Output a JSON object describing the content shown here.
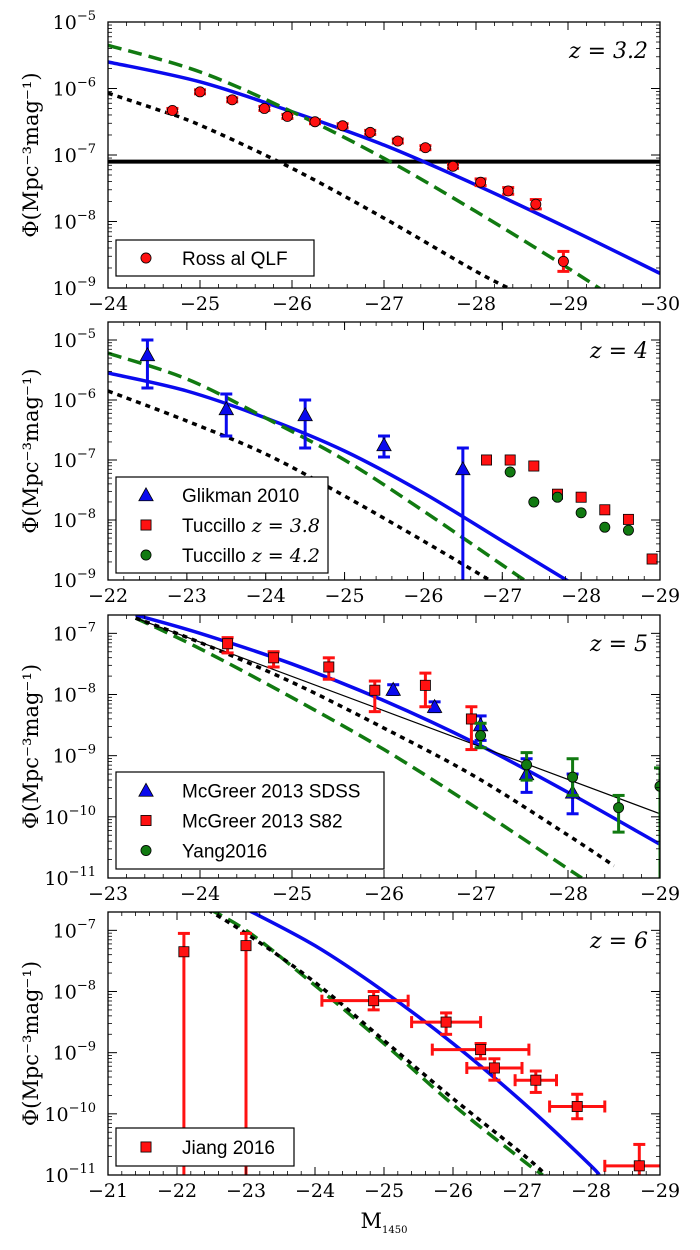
{
  "figure": {
    "xlabel": "M",
    "xlabel_sub": "1450"
  },
  "chart_data": [
    {
      "type": "scatter",
      "panel": "z = 3.2",
      "title": "z = 3.2",
      "ylabel": "Φ(Mpc⁻³mag⁻¹)",
      "xlim": [
        -24,
        -30
      ],
      "ylim_log10": [
        -9,
        -5
      ],
      "xticks": [
        -24,
        -25,
        -26,
        -27,
        -28,
        -29,
        -30
      ],
      "xtick_labels": [
        "−24",
        "−25",
        "−26",
        "−27",
        "−28",
        "−29",
        "−30"
      ],
      "ytick_exps": [
        -9,
        -8,
        -7,
        -6,
        -5
      ],
      "hline_log10": -7.1,
      "curves": [
        {
          "name": "blue",
          "color": "#0a0aee",
          "style": "solid",
          "x": [
            -24,
            -25,
            -26,
            -27,
            -28,
            -29,
            -30
          ],
          "log_y": [
            -5.6,
            -5.9,
            -6.35,
            -6.85,
            -7.45,
            -8.1,
            -8.78
          ]
        },
        {
          "name": "green",
          "color": "#117a11",
          "style": "dashed",
          "x": [
            -24,
            -25,
            -26,
            -27,
            -28,
            -29,
            -29.5
          ],
          "log_y": [
            -5.35,
            -5.75,
            -6.35,
            -7.05,
            -7.85,
            -8.7,
            -9.15
          ]
        },
        {
          "name": "black",
          "color": "#000000",
          "style": "dotted",
          "x": [
            -24,
            -24.5,
            -25,
            -26,
            -27,
            -28,
            -28.5
          ],
          "log_y": [
            -6.07,
            -6.3,
            -6.55,
            -7.2,
            -7.95,
            -8.75,
            -9.1
          ]
        }
      ],
      "series": [
        {
          "name": "Ross  al QLF",
          "marker": "circle",
          "color": "#ff1111",
          "x": [
            -24.7,
            -25.0,
            -25.35,
            -25.7,
            -25.95,
            -26.25,
            -26.55,
            -26.85,
            -27.15,
            -27.45,
            -27.75,
            -28.05,
            -28.35,
            -28.65,
            -28.95
          ],
          "log_y": [
            -6.33,
            -6.05,
            -6.17,
            -6.3,
            -6.42,
            -6.5,
            -6.56,
            -6.66,
            -6.79,
            -6.89,
            -7.17,
            -7.41,
            -7.54,
            -7.74,
            -8.6
          ],
          "err_lo": [
            0.03,
            0.03,
            0.03,
            0.03,
            0.03,
            0.03,
            0.03,
            0.03,
            0.03,
            0.03,
            0.03,
            0.05,
            0.05,
            0.07,
            0.15
          ],
          "err_hi": [
            0.03,
            0.03,
            0.03,
            0.03,
            0.03,
            0.03,
            0.03,
            0.03,
            0.03,
            0.03,
            0.03,
            0.05,
            0.05,
            0.07,
            0.15
          ]
        }
      ],
      "legend": [
        {
          "label": "Ross  al QLF",
          "marker": "circle",
          "color": "#ff1111"
        }
      ]
    },
    {
      "type": "scatter",
      "panel": "z = 4",
      "title": "z = 4",
      "ylabel": "Φ(Mpc⁻³mag⁻¹)",
      "xlim": [
        -22,
        -29
      ],
      "ylim_log10": [
        -9,
        -4.7
      ],
      "xticks": [
        -22,
        -23,
        -24,
        -25,
        -26,
        -27,
        -28,
        -29
      ],
      "xtick_labels": [
        "−22",
        "−23",
        "−24",
        "−25",
        "−26",
        "−27",
        "−28",
        "−29"
      ],
      "ytick_exps": [
        -9,
        -8,
        -7,
        -6,
        -5
      ],
      "curves": [
        {
          "name": "blue",
          "color": "#0a0aee",
          "style": "solid",
          "x": [
            -22,
            -23,
            -24,
            -25,
            -26,
            -27,
            -28,
            -28.25
          ],
          "log_y": [
            -5.55,
            -5.85,
            -6.3,
            -6.85,
            -7.55,
            -8.35,
            -9.15,
            -9.35
          ]
        },
        {
          "name": "green",
          "color": "#117a11",
          "style": "dashed",
          "x": [
            -22,
            -23,
            -24,
            -25,
            -26,
            -27,
            -27.5
          ],
          "log_y": [
            -5.22,
            -5.65,
            -6.3,
            -7.0,
            -7.85,
            -8.75,
            -9.2
          ]
        },
        {
          "name": "black",
          "color": "#000000",
          "style": "dotted",
          "x": [
            -22,
            -23,
            -24,
            -25,
            -26,
            -26.9
          ],
          "log_y": [
            -5.85,
            -6.35,
            -6.9,
            -7.6,
            -8.35,
            -9.05
          ]
        }
      ],
      "series": [
        {
          "name": "Glikman 2010",
          "marker": "triangle",
          "color": "#0a0aee",
          "x": [
            -22.5,
            -23.5,
            -24.5,
            -25.5,
            -26.5
          ],
          "log_y": [
            -5.25,
            -6.15,
            -6.25,
            -6.75,
            -7.15
          ],
          "err_lo": [
            0.55,
            0.45,
            0.55,
            0.2,
            2.0
          ],
          "err_hi": [
            0.25,
            0.25,
            0.25,
            0.15,
            0.35
          ]
        },
        {
          "name": "Tuccillo z = 3.8",
          "marker": "square",
          "color": "#ff1111",
          "x": [
            -26.8,
            -27.1,
            -27.4,
            -27.7,
            -28.0,
            -28.3,
            -28.6,
            -28.9
          ],
          "log_y": [
            -7.0,
            -7.0,
            -7.1,
            -7.57,
            -7.62,
            -7.83,
            -7.99,
            -8.65
          ],
          "err_lo": [
            0,
            0,
            0,
            0,
            0,
            0,
            0,
            0
          ],
          "err_hi": [
            0,
            0,
            0,
            0,
            0,
            0,
            0,
            0
          ]
        },
        {
          "name": "Tuccillo z = 4.2",
          "marker": "circle",
          "color": "#117a11",
          "x": [
            -27.1,
            -27.4,
            -27.7,
            -28.0,
            -28.3,
            -28.6
          ],
          "log_y": [
            -7.2,
            -7.7,
            -7.62,
            -7.88,
            -8.12,
            -8.17
          ],
          "err_lo": [
            0,
            0,
            0,
            0,
            0,
            0
          ],
          "err_hi": [
            0,
            0,
            0,
            0,
            0,
            0
          ]
        }
      ],
      "legend": [
        {
          "label": "Glikman 2010",
          "marker": "triangle",
          "color": "#0a0aee"
        },
        {
          "label": "Tuccillo",
          "z_suffix": "z = 3.8",
          "marker": "square",
          "color": "#ff1111"
        },
        {
          "label": "Tuccillo",
          "z_suffix": "z = 4.2",
          "marker": "circle",
          "color": "#117a11"
        }
      ]
    },
    {
      "type": "scatter",
      "panel": "z = 5",
      "title": "z = 5",
      "ylabel": "Φ(Mpc⁻³mag⁻¹)",
      "xlim": [
        -23,
        -29
      ],
      "ylim_log10": [
        -11,
        -6.7
      ],
      "xticks": [
        -23,
        -24,
        -25,
        -26,
        -27,
        -28,
        -29
      ],
      "xtick_labels": [
        "−23",
        "−24",
        "−25",
        "−26",
        "−27",
        "−28",
        "−29"
      ],
      "ytick_exps": [
        -11,
        -10,
        -9,
        -8,
        -7
      ],
      "curves": [
        {
          "name": "blue",
          "color": "#0a0aee",
          "style": "solid",
          "x": [
            -23.3,
            -24,
            -25,
            -26,
            -27,
            -28,
            -29
          ],
          "log_y": [
            -6.7,
            -7.0,
            -7.5,
            -8.1,
            -8.8,
            -9.6,
            -10.45
          ]
        },
        {
          "name": "green",
          "color": "#117a11",
          "style": "dashed",
          "x": [
            -23.3,
            -24,
            -25,
            -26,
            -27,
            -28,
            -28.15
          ],
          "log_y": [
            -6.75,
            -7.25,
            -8.05,
            -8.9,
            -9.85,
            -10.85,
            -11.0
          ]
        },
        {
          "name": "black",
          "color": "#000000",
          "style": "dotted",
          "x": [
            -23.3,
            -24,
            -25,
            -26,
            -27,
            -28,
            -28.5
          ],
          "log_y": [
            -6.75,
            -7.15,
            -7.8,
            -8.55,
            -9.35,
            -10.3,
            -10.8
          ]
        },
        {
          "name": "thin-black",
          "color": "#000000",
          "style": "thin",
          "x": [
            -23.3,
            -29
          ],
          "log_y": [
            -6.75,
            -9.95
          ]
        }
      ],
      "series": [
        {
          "name": "McGreer 2013 SDSS",
          "marker": "triangle",
          "color": "#0a0aee",
          "x": [
            -26.1,
            -26.55,
            -27.05,
            -27.55,
            -28.05
          ],
          "log_y": [
            -7.92,
            -8.2,
            -8.5,
            -9.3,
            -9.6
          ],
          "err_lo": [
            0.08,
            0.08,
            0.25,
            0.3,
            0.35
          ],
          "err_hi": [
            0.08,
            0.08,
            0.15,
            0.25,
            0.3
          ]
        },
        {
          "name": "McGreer 2013 S82",
          "marker": "square",
          "color": "#ff1111",
          "x": [
            -24.3,
            -24.8,
            -25.4,
            -25.9,
            -26.45,
            -26.95
          ],
          "log_y": [
            -7.17,
            -7.4,
            -7.55,
            -7.93,
            -7.85,
            -8.4
          ],
          "err_lo": [
            0.15,
            0.15,
            0.2,
            0.35,
            0.35,
            0.5
          ],
          "err_hi": [
            0.1,
            0.1,
            0.15,
            0.15,
            0.2,
            0.2
          ]
        },
        {
          "name": "Yang2016",
          "marker": "circle",
          "color": "#117a11",
          "x": [
            -27.05,
            -27.55,
            -28.05,
            -28.55,
            -29.0
          ],
          "log_y": [
            -8.67,
            -9.15,
            -9.35,
            -9.85,
            -9.5
          ],
          "err_lo": [
            0.2,
            0.25,
            0.3,
            0.4,
            1.5
          ],
          "err_hi": [
            0.2,
            0.2,
            0.3,
            0.2,
            0.3
          ]
        }
      ],
      "legend": [
        {
          "label": "McGreer 2013 SDSS",
          "marker": "triangle",
          "color": "#0a0aee"
        },
        {
          "label": "McGreer 2013 S82",
          "marker": "square",
          "color": "#ff1111"
        },
        {
          "label": "Yang2016",
          "marker": "circle",
          "color": "#117a11"
        }
      ]
    },
    {
      "type": "scatter",
      "panel": "z = 6",
      "title": "z = 6",
      "ylabel": "Φ(Mpc⁻³mag⁻¹)",
      "xlim": [
        -21,
        -29
      ],
      "ylim_log10": [
        -11,
        -6.7
      ],
      "xticks": [
        -21,
        -22,
        -23,
        -24,
        -25,
        -26,
        -27,
        -28,
        -29
      ],
      "xtick_labels": [
        "−21",
        "−22",
        "−23",
        "−24",
        "−25",
        "−26",
        "−27",
        "−28",
        "−29"
      ],
      "ytick_exps": [
        -11,
        -10,
        -9,
        -8,
        -7
      ],
      "curves": [
        {
          "name": "blue",
          "color": "#0a0aee",
          "style": "solid",
          "x": [
            -23.0,
            -24,
            -25,
            -26,
            -27,
            -28,
            -28.1
          ],
          "log_y": [
            -6.65,
            -7.25,
            -8.0,
            -8.85,
            -9.8,
            -10.85,
            -11.0
          ]
        },
        {
          "name": "green",
          "color": "#117a11",
          "style": "dashed",
          "x": [
            -22.2,
            -23,
            -24,
            -25,
            -26,
            -27,
            -27.3
          ],
          "log_y": [
            -6.5,
            -7.0,
            -7.9,
            -8.85,
            -9.85,
            -10.75,
            -11.0
          ]
        },
        {
          "name": "black",
          "color": "#000000",
          "style": "dotted",
          "x": [
            -22.2,
            -23,
            -24,
            -25,
            -26,
            -27,
            -27.35
          ],
          "log_y": [
            -6.5,
            -7.05,
            -7.85,
            -8.8,
            -9.75,
            -10.65,
            -11.0
          ]
        }
      ],
      "series": [
        {
          "name": "Jiang 2016",
          "marker": "square",
          "color": "#ff1111",
          "x": [
            -22.1,
            -23.0,
            -24.85,
            -25.9,
            -26.4,
            -26.6,
            -27.2,
            -27.8,
            -28.7
          ],
          "log_y": [
            -7.35,
            -7.25,
            -8.15,
            -8.5,
            -8.95,
            -9.25,
            -9.45,
            -9.88,
            -10.85
          ],
          "err_lo": [
            3.65,
            3.75,
            0.15,
            0.2,
            0.15,
            0.2,
            0.2,
            0.2,
            0.15
          ],
          "err_hi": [
            0.3,
            0.2,
            0.15,
            0.15,
            0.1,
            0.15,
            0.15,
            0.2,
            0.35
          ],
          "xerr_lo": [
            0,
            0,
            0.75,
            0.5,
            0.7,
            0.4,
            0.3,
            0.4,
            0.5
          ],
          "xerr_hi": [
            0,
            0,
            0.5,
            0.5,
            0.7,
            0.4,
            0.3,
            0.4,
            0.5
          ]
        }
      ],
      "legend": [
        {
          "label": "Jiang 2016",
          "marker": "square",
          "color": "#ff1111"
        }
      ]
    }
  ]
}
